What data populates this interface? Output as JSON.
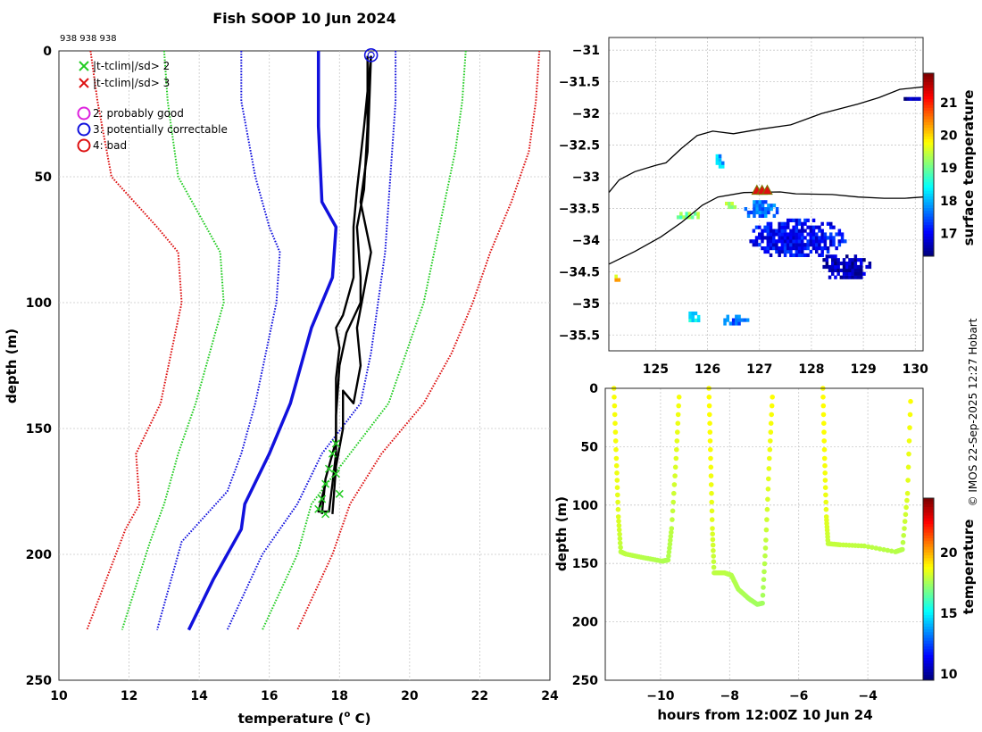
{
  "title": "Fish SOOP 10 Jun 2024",
  "cast_ids": "938 938 938",
  "credit": "© IMOS 22-Sep-2025 12:27 Hobart",
  "colors": {
    "green": "#22cc22",
    "red": "#dd1111",
    "blue": "#1111dd",
    "magenta": "#dd22dd",
    "black": "#000000",
    "grid": "#c8c8c8"
  },
  "legend": {
    "qc_cross": [
      {
        "label": "|t-tclim|/sd> 2",
        "color": "#22cc22"
      },
      {
        "label": "|t-tclim|/sd> 3",
        "color": "#dd1111"
      }
    ],
    "qc_flags": [
      {
        "label": "2: probably good",
        "color": "#dd22dd"
      },
      {
        "label": "3: potentially correctable",
        "color": "#1111dd"
      },
      {
        "label": "4: bad",
        "color": "#dd1111"
      }
    ]
  },
  "chart_data": [
    {
      "type": "line",
      "id": "profile",
      "title": "Fish SOOP 10 Jun 2024",
      "xlabel": "temperature (° C)",
      "xlabel_main": "temperature (",
      "xlabel_sup": "o",
      "xlabel_end": " C)",
      "ylabel": "depth (m)",
      "xlim": [
        10,
        24
      ],
      "ylim": [
        0,
        250
      ],
      "y_reversed": true,
      "xticks": [
        10,
        12,
        14,
        16,
        18,
        20,
        22,
        24
      ],
      "yticks": [
        0,
        50,
        100,
        150,
        200,
        250
      ],
      "grid": true,
      "climatology": [
        {
          "name": "climatology mean",
          "color": "#1111dd",
          "style": "solid",
          "width": 3.5,
          "points": [
            [
              17.4,
              0
            ],
            [
              17.4,
              30
            ],
            [
              17.5,
              60
            ],
            [
              17.9,
              70
            ],
            [
              17.8,
              90
            ],
            [
              17.2,
              110
            ],
            [
              16.6,
              140
            ],
            [
              16.0,
              160
            ],
            [
              15.3,
              180
            ],
            [
              15.2,
              190
            ],
            [
              14.4,
              210
            ],
            [
              13.7,
              230
            ]
          ]
        },
        {
          "name": "mean - 1 sd",
          "color": "#1111dd",
          "style": "dotted",
          "width": 2,
          "points": [
            [
              15.2,
              0
            ],
            [
              15.2,
              20
            ],
            [
              15.6,
              50
            ],
            [
              16.0,
              70
            ],
            [
              16.3,
              80
            ],
            [
              16.2,
              100
            ],
            [
              15.9,
              120
            ],
            [
              15.6,
              140
            ],
            [
              15.2,
              160
            ],
            [
              14.8,
              175
            ],
            [
              13.5,
              195
            ],
            [
              12.8,
              230
            ]
          ]
        },
        {
          "name": "mean + 1 sd",
          "color": "#1111dd",
          "style": "dotted",
          "width": 2,
          "points": [
            [
              19.6,
              0
            ],
            [
              19.6,
              20
            ],
            [
              19.5,
              40
            ],
            [
              19.4,
              60
            ],
            [
              19.3,
              80
            ],
            [
              19.1,
              100
            ],
            [
              18.9,
              120
            ],
            [
              18.6,
              140
            ],
            [
              17.5,
              160
            ],
            [
              16.8,
              180
            ],
            [
              15.8,
              200
            ],
            [
              14.8,
              230
            ]
          ]
        },
        {
          "name": "mean - 2 sd",
          "color": "#22cc22",
          "style": "dotted",
          "width": 2,
          "points": [
            [
              13.0,
              0
            ],
            [
              13.1,
              20
            ],
            [
              13.4,
              50
            ],
            [
              14.2,
              70
            ],
            [
              14.6,
              80
            ],
            [
              14.7,
              100
            ],
            [
              14.3,
              120
            ],
            [
              13.9,
              140
            ],
            [
              13.4,
              160
            ],
            [
              13.0,
              180
            ],
            [
              12.6,
              195
            ],
            [
              11.8,
              230
            ]
          ]
        },
        {
          "name": "mean + 2 sd",
          "color": "#22cc22",
          "style": "dotted",
          "width": 2,
          "points": [
            [
              21.6,
              0
            ],
            [
              21.5,
              20
            ],
            [
              21.3,
              40
            ],
            [
              21.0,
              60
            ],
            [
              20.7,
              80
            ],
            [
              20.4,
              100
            ],
            [
              19.9,
              120
            ],
            [
              19.4,
              140
            ],
            [
              18.3,
              160
            ],
            [
              17.2,
              180
            ],
            [
              16.8,
              200
            ],
            [
              15.8,
              230
            ]
          ]
        },
        {
          "name": "mean - 3 sd",
          "color": "#dd1111",
          "style": "dotted",
          "width": 2,
          "points": [
            [
              10.9,
              0
            ],
            [
              11.1,
              20
            ],
            [
              11.5,
              50
            ],
            [
              12.8,
              70
            ],
            [
              13.4,
              80
            ],
            [
              13.5,
              100
            ],
            [
              13.2,
              120
            ],
            [
              12.9,
              140
            ],
            [
              12.2,
              160
            ],
            [
              12.3,
              180
            ],
            [
              11.9,
              190
            ],
            [
              10.8,
              230
            ]
          ]
        },
        {
          "name": "mean + 3 sd",
          "color": "#dd1111",
          "style": "dotted",
          "width": 2,
          "points": [
            [
              23.7,
              0
            ],
            [
              23.6,
              20
            ],
            [
              23.4,
              40
            ],
            [
              22.9,
              60
            ],
            [
              22.3,
              80
            ],
            [
              21.8,
              100
            ],
            [
              21.2,
              120
            ],
            [
              20.4,
              140
            ],
            [
              19.2,
              160
            ],
            [
              18.3,
              180
            ],
            [
              17.8,
              200
            ],
            [
              16.8,
              230
            ]
          ]
        }
      ],
      "casts": [
        {
          "name": "cast 1",
          "color": "#000000",
          "points": [
            [
              18.8,
              2
            ],
            [
              18.8,
              30
            ],
            [
              18.7,
              55
            ],
            [
              18.5,
              70
            ],
            [
              18.6,
              90
            ],
            [
              18.6,
              100
            ],
            [
              18.2,
              112
            ],
            [
              18.0,
              125
            ],
            [
              17.9,
              145
            ],
            [
              17.9,
              160
            ],
            [
              17.8,
              172
            ],
            [
              17.7,
              183
            ],
            [
              17.4,
              183
            ],
            [
              17.6,
              172
            ]
          ]
        },
        {
          "name": "cast 2",
          "color": "#000000",
          "points": [
            [
              18.9,
              2
            ],
            [
              18.8,
              40
            ],
            [
              18.6,
              60
            ],
            [
              18.9,
              80
            ],
            [
              18.7,
              95
            ],
            [
              18.5,
              110
            ],
            [
              18.6,
              125
            ],
            [
              18.4,
              140
            ],
            [
              18.1,
              135
            ],
            [
              18.1,
              150
            ],
            [
              17.9,
              165
            ],
            [
              17.8,
              184
            ]
          ]
        },
        {
          "name": "cast 3",
          "color": "#000000",
          "points": [
            [
              18.9,
              2
            ],
            [
              18.7,
              30
            ],
            [
              18.5,
              55
            ],
            [
              18.4,
              70
            ],
            [
              18.4,
              90
            ],
            [
              18.1,
              105
            ],
            [
              17.9,
              110
            ],
            [
              18.0,
              118
            ],
            [
              17.9,
              130
            ],
            [
              17.9,
              155
            ],
            [
              17.6,
              170
            ],
            [
              17.5,
              184
            ]
          ]
        }
      ],
      "flag_circle": {
        "x": 18.9,
        "y": 1,
        "color": "#1111dd"
      },
      "green_crosses": [
        [
          17.4,
          182
        ],
        [
          17.5,
          178
        ],
        [
          17.6,
          172
        ],
        [
          17.7,
          166
        ],
        [
          17.8,
          160
        ],
        [
          17.9,
          156
        ],
        [
          17.9,
          168
        ],
        [
          18.0,
          176
        ],
        [
          17.6,
          184
        ]
      ]
    },
    {
      "type": "heatmap",
      "id": "map",
      "xlim": [
        124.1,
        130.15
      ],
      "ylim": [
        -35.75,
        -30.8
      ],
      "xticks": [
        125,
        126,
        127,
        128,
        129,
        130
      ],
      "yticks": [
        -31,
        -31.5,
        -32,
        -32.5,
        -33,
        -33.5,
        -34,
        -34.5,
        -35,
        -35.5
      ],
      "colorbar": {
        "label": "surface temperature",
        "min": 16.3,
        "max": 21.9,
        "ticks": [
          17,
          18,
          19,
          20,
          21
        ]
      },
      "coastline": [
        [
          [
            124.1,
            -33.25
          ],
          [
            124.3,
            -33.05
          ],
          [
            124.6,
            -32.92
          ],
          [
            125.0,
            -32.82
          ],
          [
            125.2,
            -32.78
          ],
          [
            125.5,
            -32.55
          ],
          [
            125.8,
            -32.35
          ],
          [
            126.1,
            -32.28
          ],
          [
            126.5,
            -32.32
          ],
          [
            127.0,
            -32.25
          ],
          [
            127.6,
            -32.18
          ],
          [
            128.2,
            -32.0
          ],
          [
            128.9,
            -31.85
          ],
          [
            129.3,
            -31.75
          ],
          [
            129.7,
            -31.62
          ],
          [
            130.15,
            -31.58
          ]
        ],
        [
          [
            124.1,
            -34.38
          ],
          [
            124.6,
            -34.18
          ],
          [
            125.1,
            -33.95
          ],
          [
            125.5,
            -33.72
          ],
          [
            125.9,
            -33.45
          ],
          [
            126.2,
            -33.32
          ],
          [
            126.7,
            -33.25
          ],
          [
            127.4,
            -33.24
          ],
          [
            127.7,
            -33.27
          ],
          [
            128.4,
            -33.28
          ],
          [
            128.9,
            -33.32
          ],
          [
            129.4,
            -33.34
          ],
          [
            129.8,
            -33.34
          ],
          [
            130.15,
            -33.32
          ]
        ]
      ],
      "ship_markers": [
        [
          126.95,
          -33.22
        ],
        [
          127.05,
          -33.22
        ],
        [
          127.15,
          -33.22
        ]
      ],
      "patches": [
        {
          "lon": 127.7,
          "lat": -34.0,
          "rlon": 0.95,
          "rlat": 0.32,
          "t": 17.0
        },
        {
          "lon": 128.6,
          "lat": -34.45,
          "rlon": 0.55,
          "rlat": 0.22,
          "t": 16.6
        },
        {
          "lon": 127.0,
          "lat": -33.55,
          "rlon": 0.35,
          "rlat": 0.15,
          "t": 17.6
        },
        {
          "lon": 126.2,
          "lat": -32.8,
          "rlon": 0.1,
          "rlat": 0.12,
          "t": 18.0
        },
        {
          "lon": 125.7,
          "lat": -35.25,
          "rlon": 0.12,
          "rlat": 0.1,
          "t": 18.4
        },
        {
          "lon": 126.5,
          "lat": -35.3,
          "rlon": 0.25,
          "rlat": 0.1,
          "t": 17.5
        },
        {
          "lon": 125.6,
          "lat": -33.65,
          "rlon": 0.25,
          "rlat": 0.07,
          "t": 19.1
        },
        {
          "lon": 124.2,
          "lat": -34.65,
          "rlon": 0.1,
          "rlat": 0.06,
          "t": 20.0
        },
        {
          "lon": 129.9,
          "lat": -31.8,
          "rlon": 0.18,
          "rlat": 0.05,
          "t": 16.5
        },
        {
          "lon": 126.4,
          "lat": -33.5,
          "rlon": 0.12,
          "rlat": 0.06,
          "t": 19.3
        }
      ]
    },
    {
      "type": "scatter",
      "id": "time-depth",
      "xlabel": "hours from 12:00Z 10 Jun 24",
      "ylabel": "depth (m)",
      "xlim": [
        -11.6,
        -2.4
      ],
      "ylim": [
        0,
        250
      ],
      "y_reversed": true,
      "xticks": [
        -10,
        -8,
        -6,
        -4
      ],
      "yticks": [
        0,
        50,
        100,
        150,
        200,
        250
      ],
      "colorbar": {
        "label": "temperature",
        "min": 9.5,
        "max": 24.5,
        "ticks": [
          10,
          15,
          20
        ]
      },
      "casts": [
        {
          "points": [
            [
              -11.35,
              0
            ],
            [
              -11.28,
              60
            ],
            [
              -11.22,
              110
            ],
            [
              -11.15,
              140
            ],
            [
              -11.0,
              142
            ],
            [
              -10.5,
              145
            ],
            [
              -9.95,
              148
            ],
            [
              -9.78,
              147
            ],
            [
              -9.68,
              120
            ],
            [
              -9.55,
              60
            ],
            [
              -9.45,
              0
            ]
          ],
          "temps": [
            18.8,
            18.7,
            18.4,
            17.9,
            17.9,
            17.8,
            17.7,
            17.7,
            17.9,
            18.4,
            18.8
          ]
        },
        {
          "points": [
            [
              -8.6,
              0
            ],
            [
              -8.55,
              60
            ],
            [
              -8.5,
              120
            ],
            [
              -8.45,
              158
            ],
            [
              -8.15,
              158
            ],
            [
              -7.95,
              160
            ],
            [
              -7.75,
              172
            ],
            [
              -7.45,
              180
            ],
            [
              -7.2,
              185
            ],
            [
              -7.05,
              184
            ],
            [
              -6.95,
              130
            ],
            [
              -6.85,
              60
            ],
            [
              -6.75,
              0
            ]
          ],
          "temps": [
            18.9,
            18.8,
            18.4,
            17.9,
            17.9,
            17.8,
            17.7,
            17.6,
            17.5,
            17.5,
            18.0,
            18.6,
            18.9
          ]
        },
        {
          "points": [
            [
              -5.3,
              0
            ],
            [
              -5.25,
              60
            ],
            [
              -5.2,
              110
            ],
            [
              -5.15,
              133
            ],
            [
              -4.8,
              134
            ],
            [
              -4.1,
              135
            ],
            [
              -3.2,
              140
            ],
            [
              -3.0,
              138
            ],
            [
              -2.85,
              90
            ],
            [
              -2.75,
              0
            ]
          ],
          "temps": [
            18.9,
            18.8,
            18.5,
            18.0,
            18.0,
            17.9,
            17.8,
            17.8,
            18.4,
            18.9
          ]
        }
      ]
    }
  ]
}
